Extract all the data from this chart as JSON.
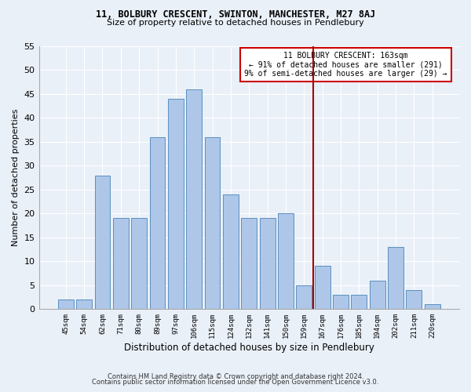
{
  "title1": "11, BOLBURY CRESCENT, SWINTON, MANCHESTER, M27 8AJ",
  "title2": "Size of property relative to detached houses in Pendlebury",
  "xlabel": "Distribution of detached houses by size in Pendlebury",
  "ylabel": "Number of detached properties",
  "footer1": "Contains HM Land Registry data © Crown copyright and database right 2024.",
  "footer2": "Contains public sector information licensed under the Open Government Licence v3.0.",
  "annotation_title": "11 BOLBURY CRESCENT: 163sqm",
  "annotation_line1": "← 91% of detached houses are smaller (291)",
  "annotation_line2": "9% of semi-detached houses are larger (29) →",
  "categories": [
    "45sqm",
    "54sqm",
    "62sqm",
    "71sqm",
    "80sqm",
    "89sqm",
    "97sqm",
    "106sqm",
    "115sqm",
    "124sqm",
    "132sqm",
    "141sqm",
    "150sqm",
    "159sqm",
    "167sqm",
    "176sqm",
    "185sqm",
    "194sqm",
    "202sqm",
    "211sqm",
    "220sqm"
  ],
  "values": [
    2,
    2,
    28,
    19,
    19,
    36,
    44,
    46,
    36,
    24,
    19,
    19,
    20,
    5,
    9,
    3,
    3,
    6,
    13,
    4,
    1
  ],
  "bar_color": "#aec6e8",
  "bar_edge_color": "#5a90c0",
  "vline_color": "#aa0000",
  "vline_x_index": 13.5,
  "annotation_box_color": "#cc0000",
  "background_color": "#eaf0f8",
  "ylim": [
    0,
    55
  ],
  "yticks": [
    0,
    5,
    10,
    15,
    20,
    25,
    30,
    35,
    40,
    45,
    50,
    55
  ]
}
